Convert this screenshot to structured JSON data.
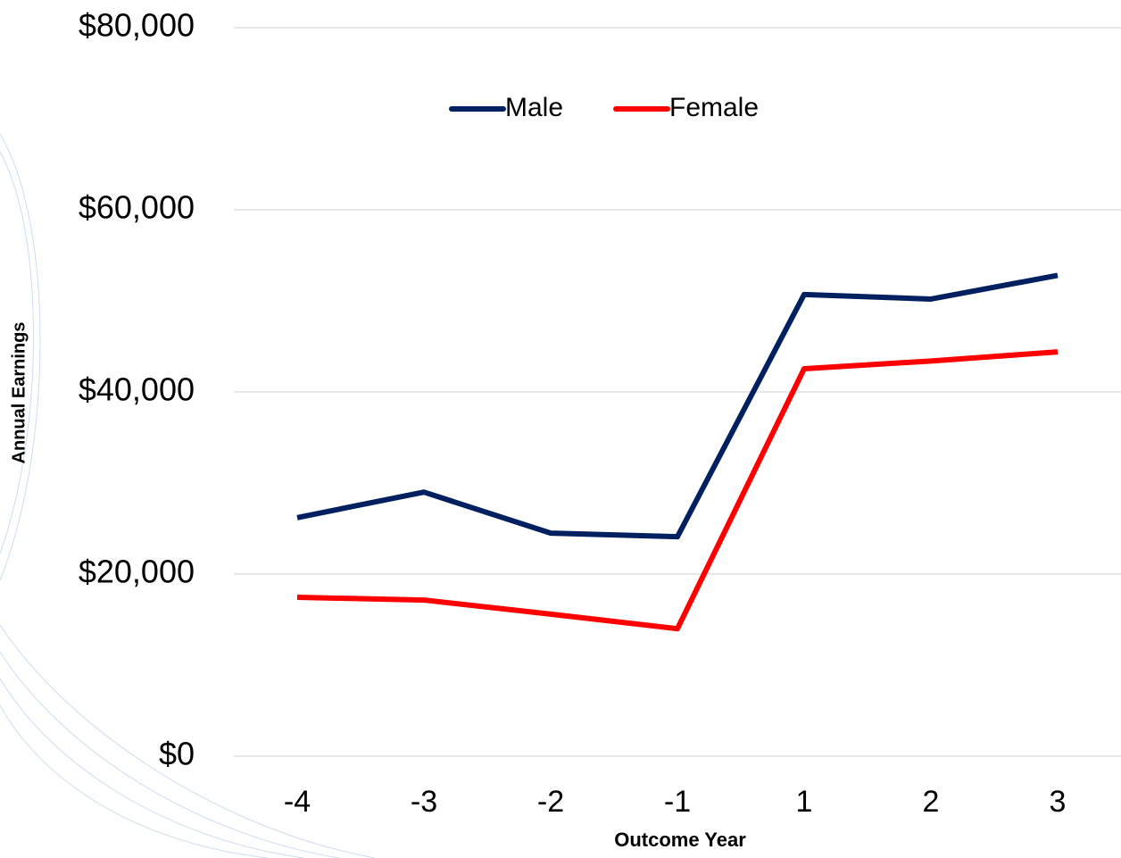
{
  "chart_data": {
    "type": "line",
    "x_label": "Outcome Year",
    "y_label": "Annual Earnings",
    "categories": [
      "-4",
      "-3",
      "-2",
      "-1",
      "1",
      "2",
      "3"
    ],
    "series": [
      {
        "name": "Male",
        "color": "#002060",
        "values": [
          26200,
          29000,
          24500,
          24100,
          50700,
          50200,
          52800
        ]
      },
      {
        "name": "Female",
        "color": "#ff0000",
        "values": [
          17450,
          17150,
          15600,
          14000,
          42550,
          43400,
          44400
        ]
      }
    ],
    "ylim": [
      0,
      80000
    ],
    "yticks": [
      {
        "value": 0,
        "label": "$0"
      },
      {
        "value": 20000,
        "label": "$20,000"
      },
      {
        "value": 40000,
        "label": "$40,000"
      },
      {
        "value": 60000,
        "label": "$60,000"
      },
      {
        "value": 80000,
        "label": "$80,000"
      }
    ],
    "grid": true,
    "legend": "top"
  }
}
